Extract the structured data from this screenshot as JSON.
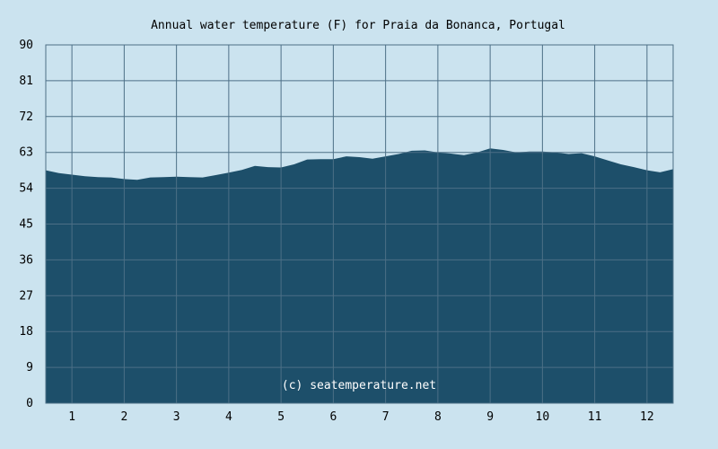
{
  "chart_data": {
    "type": "area",
    "title": "Annual water temperature (F) for Praia da Bonanca, Portugal",
    "xlabel": "",
    "ylabel": "",
    "ylim": [
      0,
      90
    ],
    "y_ticks": [
      0,
      9,
      18,
      27,
      36,
      45,
      54,
      63,
      72,
      81,
      90
    ],
    "x_tick_labels": [
      "1",
      "2",
      "3",
      "4",
      "5",
      "6",
      "7",
      "8",
      "9",
      "10",
      "11",
      "12"
    ],
    "xlim_months": [
      0.5,
      12.5
    ],
    "grid": true,
    "legend": "none",
    "watermark": "(c) seatemperature.net",
    "series": [
      {
        "x_month": [
          0.5,
          0.75,
          1.0,
          1.25,
          1.5,
          1.75,
          2.0,
          2.25,
          2.5,
          2.75,
          3.0,
          3.25,
          3.5,
          3.75,
          4.0,
          4.25,
          4.5,
          4.75,
          5.0,
          5.25,
          5.5,
          5.75,
          6.0,
          6.25,
          6.5,
          6.75,
          7.0,
          7.25,
          7.5,
          7.75,
          8.0,
          8.25,
          8.5,
          8.75,
          9.0,
          9.25,
          9.5,
          9.75,
          10.0,
          10.25,
          10.5,
          10.75,
          11.0,
          11.25,
          11.5,
          11.75,
          12.0,
          12.25,
          12.5
        ],
        "values": [
          58.5,
          57.8,
          57.4,
          57.0,
          56.8,
          56.7,
          56.3,
          56.1,
          56.7,
          56.8,
          56.9,
          56.8,
          56.7,
          57.3,
          57.9,
          58.6,
          59.6,
          59.3,
          59.2,
          60.0,
          61.2,
          61.3,
          61.3,
          62.0,
          61.8,
          61.4,
          62.0,
          62.6,
          63.4,
          63.5,
          63.0,
          62.7,
          62.3,
          63.0,
          64.0,
          63.6,
          63.0,
          63.2,
          63.2,
          63.0,
          62.6,
          62.8,
          62.0,
          61.0,
          60.0,
          59.3,
          58.5,
          58.0,
          58.8
        ],
        "color": "#1d4f6a"
      }
    ],
    "colors": {
      "background": "#cbe3ef",
      "plot_background": "#cbe3ef",
      "grid": "#4c6f86",
      "fill": "#1d4f6a",
      "watermark": "#ffffff"
    }
  }
}
